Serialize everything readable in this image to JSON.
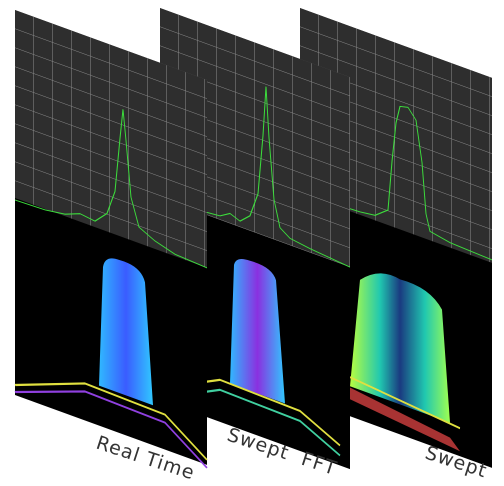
{
  "labels": [
    "Real Time",
    "Swept  FFT",
    "Swept"
  ]
}
